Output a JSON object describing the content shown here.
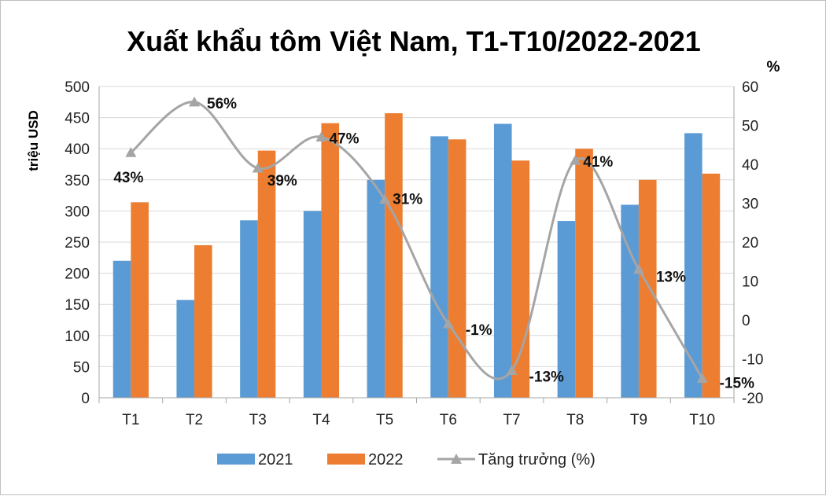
{
  "chart_data": {
    "type": "bar",
    "title": "Xuất khẩu tôm Việt Nam, T1-T10/2022-2021",
    "ylabel": "triệu USD",
    "y2label": "%",
    "categories": [
      "T1",
      "T2",
      "T3",
      "T4",
      "T5",
      "T6",
      "T7",
      "T8",
      "T9",
      "T10"
    ],
    "ylim": [
      0,
      500
    ],
    "y_ticks": [
      "0",
      "50",
      "100",
      "150",
      "200",
      "250",
      "300",
      "350",
      "400",
      "450",
      "500"
    ],
    "y2lim": [
      -20,
      60
    ],
    "y2_ticks": [
      "-20",
      "-10",
      "0",
      "10",
      "20",
      "30",
      "40",
      "50",
      "60"
    ],
    "grid": true,
    "legend": "bottom",
    "series": [
      {
        "name": "2021",
        "type": "bar",
        "axis": "left",
        "color": "#5b9bd5",
        "values": [
          220,
          157,
          285,
          300,
          350,
          420,
          440,
          284,
          310,
          425
        ]
      },
      {
        "name": "2022",
        "type": "bar",
        "axis": "left",
        "color": "#ed7d31",
        "values": [
          314,
          245,
          397,
          441,
          457,
          415,
          381,
          400,
          350,
          360
        ]
      },
      {
        "name": "Tăng trưởng (%)",
        "type": "line",
        "axis": "right",
        "color": "#a5a5a5",
        "marker": "triangle",
        "values": [
          43,
          56,
          39,
          47,
          31,
          -1,
          -13,
          41,
          13,
          -15
        ],
        "labels": [
          "43%",
          "56%",
          "39%",
          "47%",
          "31%",
          "-1%",
          "-13%",
          "41%",
          "13%",
          "-15%"
        ]
      }
    ]
  }
}
